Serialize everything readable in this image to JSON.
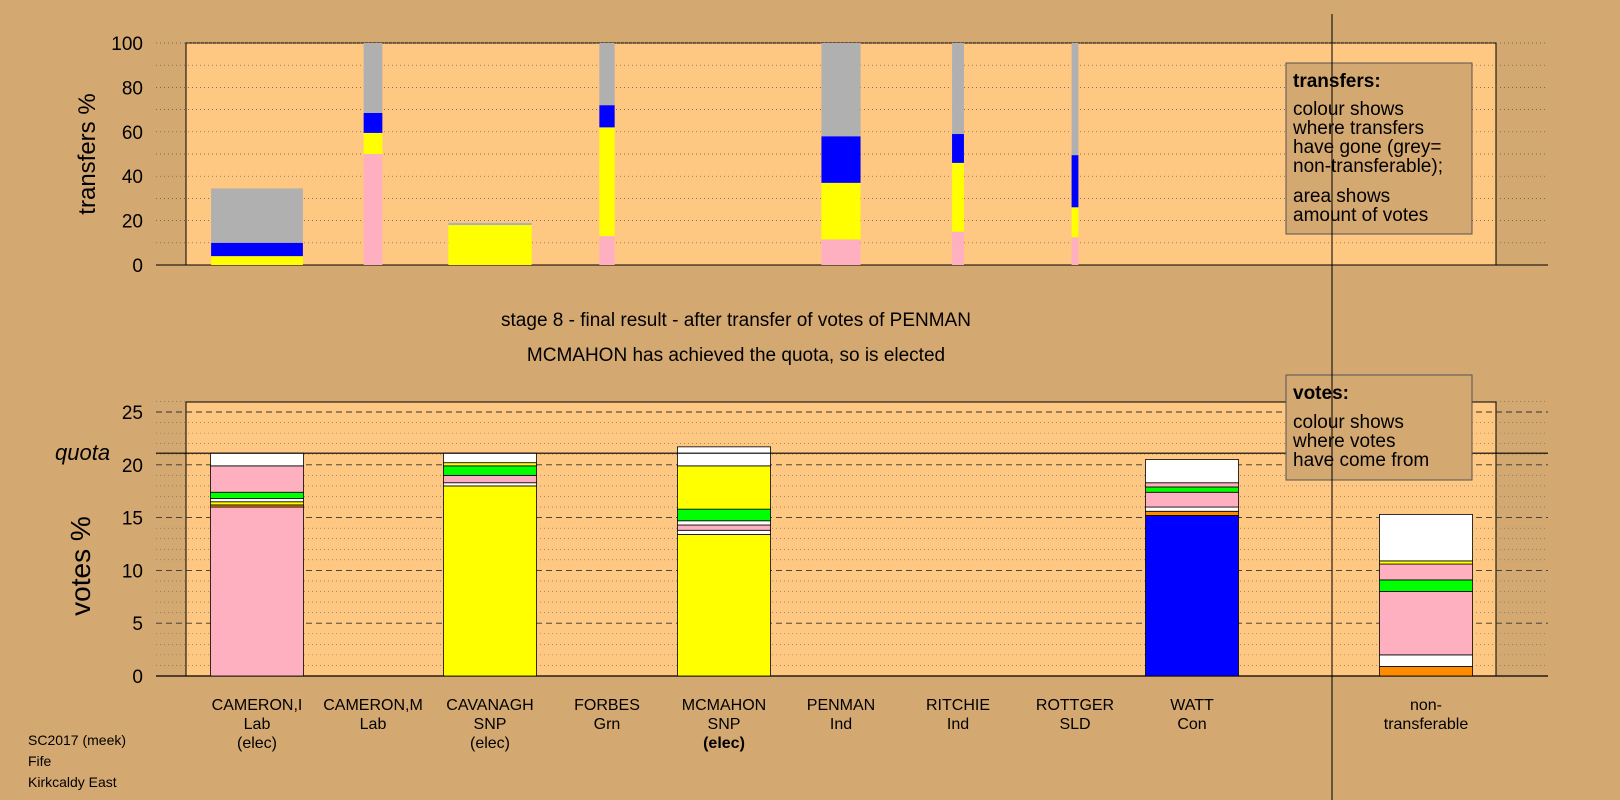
{
  "chart_data": [
    {
      "type": "bar",
      "subtype": "stacked-transfers",
      "ylabel": "transfers %",
      "ylim": [
        0,
        100
      ],
      "yticks": [
        0,
        20,
        40,
        60,
        80,
        100
      ],
      "grid": "dotted horizontal every 10",
      "legend_position": "top-right",
      "legend": {
        "title": "transfers:",
        "lines": [
          "colour shows",
          "where transfers",
          "have gone (grey=",
          "non-transferable);"
        ],
        "lines2": [
          "area shows",
          "amount of votes"
        ]
      },
      "bars": [
        {
          "from": "CAMERON,I",
          "width_share": 0.27,
          "segments": [
            {
              "color": "#ffff00",
              "value": 4
            },
            {
              "color": "#0000ff",
              "value": 6
            },
            {
              "color": "#b0b0b0",
              "value": 24.5
            }
          ]
        },
        {
          "from": "CAMERON,M",
          "width_share": 0.055,
          "segments": [
            {
              "color": "#ffb0c0",
              "value": 50
            },
            {
              "color": "#ffff00",
              "value": 9.5
            },
            {
              "color": "#0000ff",
              "value": 9
            },
            {
              "color": "#b0b0b0",
              "value": 31.5
            }
          ]
        },
        {
          "from": "CAVANAGH",
          "width_share": 0.245,
          "segments": [
            {
              "color": "#ffff00",
              "value": 18
            },
            {
              "color": "#b0b0b0",
              "value": 1
            }
          ]
        },
        {
          "from": "FORBES",
          "width_share": 0.045,
          "segments": [
            {
              "color": "#ffb0c0",
              "value": 13
            },
            {
              "color": "#ffff00",
              "value": 49
            },
            {
              "color": "#0000ff",
              "value": 10
            },
            {
              "color": "#b0b0b0",
              "value": 28
            }
          ]
        },
        {
          "from": "PENMAN",
          "width_share": 0.115,
          "segments": [
            {
              "color": "#ffb0c0",
              "value": 11.5
            },
            {
              "color": "#ffff00",
              "value": 25.5
            },
            {
              "color": "#0000ff",
              "value": 21
            },
            {
              "color": "#b0b0b0",
              "value": 42
            }
          ]
        },
        {
          "from": "RITCHIE",
          "width_share": 0.035,
          "segments": [
            {
              "color": "#ffb0c0",
              "value": 15
            },
            {
              "color": "#ffff00",
              "value": 31
            },
            {
              "color": "#0000ff",
              "value": 13
            },
            {
              "color": "#b0b0b0",
              "value": 41
            }
          ]
        },
        {
          "from": "ROTTGER",
          "width_share": 0.02,
          "segments": [
            {
              "color": "#ffb0c0",
              "value": 12.5
            },
            {
              "color": "#ffff00",
              "value": 13.5
            },
            {
              "color": "#0000ff",
              "value": 23.5
            },
            {
              "color": "#b0b0b0",
              "value": 50.5
            }
          ]
        }
      ]
    },
    {
      "type": "bar",
      "subtype": "stacked-votes",
      "ylabel": "votes %",
      "ylim": [
        0,
        25
      ],
      "yticks": [
        0,
        5,
        10,
        15,
        20,
        25
      ],
      "quota": 21.1,
      "quota_label": "quota",
      "grid": "dashed every 5, dotted every 1",
      "legend_position": "top-right",
      "legend": {
        "title": "votes:",
        "lines": [
          "colour shows",
          "where votes",
          "have come from"
        ]
      },
      "categories": [
        {
          "name": "CAMERON,I",
          "party": "Lab",
          "status": "(elec)",
          "status_bold": false
        },
        {
          "name": "CAMERON,M",
          "party": "Lab",
          "status": "",
          "status_bold": false
        },
        {
          "name": "CAVANAGH",
          "party": "SNP",
          "status": "(elec)",
          "status_bold": false
        },
        {
          "name": "FORBES",
          "party": "Grn",
          "status": "",
          "status_bold": false
        },
        {
          "name": "MCMAHON",
          "party": "SNP",
          "status": "(elec)",
          "status_bold": true
        },
        {
          "name": "PENMAN",
          "party": "Ind",
          "status": "",
          "status_bold": false
        },
        {
          "name": "RITCHIE",
          "party": "Ind",
          "status": "",
          "status_bold": false
        },
        {
          "name": "ROTTGER",
          "party": "SLD",
          "status": "",
          "status_bold": false
        },
        {
          "name": "WATT",
          "party": "Con",
          "status": "",
          "status_bold": false
        },
        {
          "name": "non-",
          "party": "transferable",
          "status": "",
          "status_bold": false
        }
      ],
      "series_stacks": [
        {
          "name": "CAMERON,I",
          "segments": [
            {
              "color": "#ffb0c0",
              "value": 16.0
            },
            {
              "color": "#ff8c00",
              "value": 0.2
            },
            {
              "color": "#ffff00",
              "value": 0.3
            },
            {
              "color": "#ffffff",
              "value": 0.3
            },
            {
              "color": "#00ff00",
              "value": 0.6
            },
            {
              "color": "#ffb0c0",
              "value": 2.5
            },
            {
              "color": "#ffffff",
              "value": 1.2
            }
          ]
        },
        {
          "name": "CAMERON,M",
          "segments": []
        },
        {
          "name": "CAVANAGH",
          "segments": [
            {
              "color": "#ffff00",
              "value": 18.0
            },
            {
              "color": "#ffffff",
              "value": 0.3
            },
            {
              "color": "#ffb0c0",
              "value": 0.7
            },
            {
              "color": "#00ff00",
              "value": 0.9
            },
            {
              "color": "#ffff00",
              "value": 0.3
            },
            {
              "color": "#ffffff",
              "value": 0.9
            }
          ]
        },
        {
          "name": "FORBES",
          "segments": []
        },
        {
          "name": "MCMAHON",
          "segments": [
            {
              "color": "#ffff00",
              "value": 13.4
            },
            {
              "color": "#ffffff",
              "value": 0.4
            },
            {
              "color": "#ffb0c0",
              "value": 0.5
            },
            {
              "color": "#ffffff",
              "value": 0.4
            },
            {
              "color": "#00ff00",
              "value": 1.1
            },
            {
              "color": "#ffff00",
              "value": 4.1
            },
            {
              "color": "#ffffff",
              "value": 1.8
            }
          ]
        },
        {
          "name": "PENMAN",
          "segments": []
        },
        {
          "name": "RITCHIE",
          "segments": []
        },
        {
          "name": "ROTTGER",
          "segments": []
        },
        {
          "name": "WATT",
          "segments": [
            {
              "color": "#0000ff",
              "value": 15.2
            },
            {
              "color": "#ff8c00",
              "value": 0.4
            },
            {
              "color": "#ffffff",
              "value": 0.4
            },
            {
              "color": "#ffb0c0",
              "value": 1.4
            },
            {
              "color": "#00ff00",
              "value": 0.5
            },
            {
              "color": "#ffb0c0",
              "value": 0.4
            },
            {
              "color": "#ffffff",
              "value": 2.2
            }
          ]
        },
        {
          "name": "non-transferable",
          "segments": [
            {
              "color": "#ff8c00",
              "value": 0.9
            },
            {
              "color": "#ffffff",
              "value": 1.1
            },
            {
              "color": "#ffb0c0",
              "value": 6.0
            },
            {
              "color": "#00ff00",
              "value": 1.1
            },
            {
              "color": "#ffb0c0",
              "value": 1.5
            },
            {
              "color": "#ffff00",
              "value": 0.3
            },
            {
              "color": "#ffffff",
              "value": 4.4
            }
          ]
        }
      ]
    }
  ],
  "caption": {
    "line1": "stage 8 - final result - after transfer of votes of PENMAN",
    "line2": "MCMAHON has achieved the quota, so is elected"
  },
  "footer": {
    "line1": "SC2017 (meek)",
    "line2": "Fife",
    "line3": "Kirkcaldy East"
  },
  "colors": {
    "background": "#d4a871",
    "plot_area": "#ffc882",
    "non_transferable": "#b0b0b0",
    "labour": "#ffb0c0",
    "snp": "#ffff00",
    "conservative": "#0000ff",
    "green": "#00ff00",
    "libdem": "#ff8c00"
  }
}
